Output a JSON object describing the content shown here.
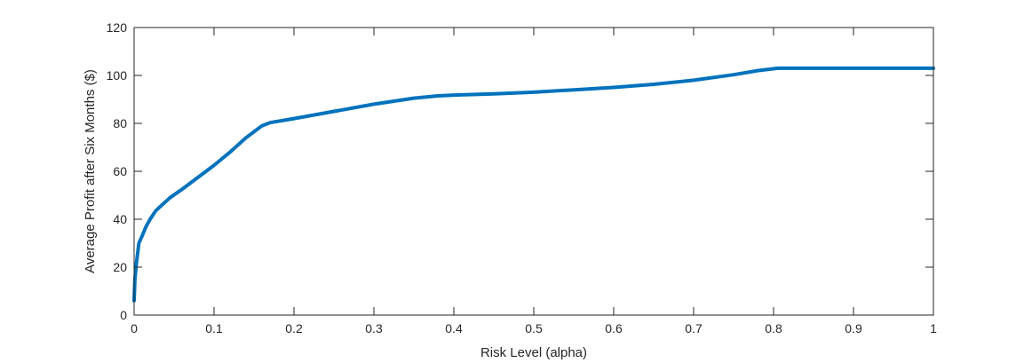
{
  "chart_data": {
    "type": "line",
    "title": "",
    "xlabel": "Risk Level (alpha)",
    "ylabel": "Average Profit after Six Months ($)",
    "xlim": [
      0,
      1
    ],
    "ylim": [
      0,
      120
    ],
    "xticks": [
      0,
      0.1,
      0.2,
      0.3,
      0.4,
      0.5,
      0.6,
      0.7,
      0.8,
      0.9,
      1
    ],
    "xtick_labels": [
      "0",
      "0.1",
      "0.2",
      "0.3",
      "0.4",
      "0.5",
      "0.6",
      "0.7",
      "0.8",
      "0.9",
      "1"
    ],
    "yticks": [
      0,
      20,
      40,
      60,
      80,
      100,
      120
    ],
    "ytick_labels": [
      "0",
      "20",
      "40",
      "60",
      "80",
      "100",
      "120"
    ],
    "grid": false,
    "legend": "none",
    "series": [
      {
        "color": "#0072BD",
        "x": [
          0,
          0.001,
          0.003,
          0.006,
          0.01,
          0.015,
          0.02,
          0.027,
          0.035,
          0.045,
          0.06,
          0.08,
          0.1,
          0.12,
          0.14,
          0.16,
          0.17,
          0.2,
          0.25,
          0.3,
          0.35,
          0.38,
          0.4,
          0.45,
          0.5,
          0.55,
          0.6,
          0.65,
          0.7,
          0.75,
          0.78,
          0.805,
          0.85,
          0.9,
          0.95,
          1
        ],
        "y": [
          6,
          15,
          22,
          30,
          33,
          37,
          40,
          43.5,
          46,
          49,
          52.5,
          57.5,
          62.5,
          68,
          74,
          79,
          80.3,
          82,
          85,
          88,
          90.5,
          91.5,
          91.8,
          92.3,
          93,
          94,
          95,
          96.3,
          98,
          100.3,
          102,
          103,
          103,
          103,
          103,
          103
        ]
      }
    ]
  }
}
